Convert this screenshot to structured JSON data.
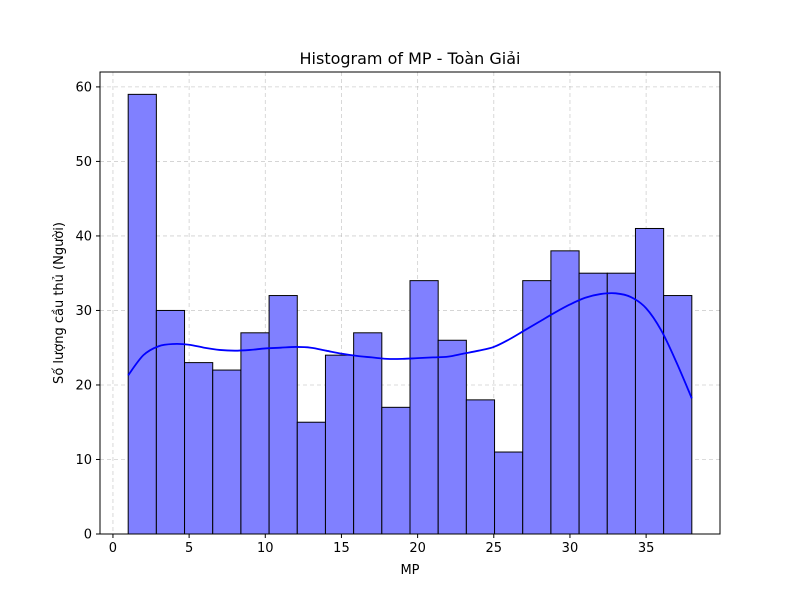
{
  "chart_data": {
    "type": "bar",
    "title": "Histogram of MP - Toàn Giải",
    "xlabel": "MP",
    "ylabel": "Số lượng cầu thủ (Người)",
    "xlim": [
      -0.85,
      39.85
    ],
    "ylim": [
      0,
      62
    ],
    "xticks": [
      0,
      5,
      10,
      15,
      20,
      25,
      30,
      35
    ],
    "yticks": [
      0,
      10,
      20,
      30,
      40,
      50,
      60
    ],
    "grid": true,
    "bar_color": "#8080ff",
    "bar_edge_color": "#000000",
    "kde_color": "#0000ff",
    "bins": [
      {
        "start": 1.0,
        "end": 2.85,
        "count": 59
      },
      {
        "start": 2.85,
        "end": 4.7,
        "count": 30
      },
      {
        "start": 4.7,
        "end": 6.55,
        "count": 23
      },
      {
        "start": 6.55,
        "end": 8.4,
        "count": 22
      },
      {
        "start": 8.4,
        "end": 10.25,
        "count": 27
      },
      {
        "start": 10.25,
        "end": 12.1,
        "count": 32
      },
      {
        "start": 12.1,
        "end": 13.95,
        "count": 15
      },
      {
        "start": 13.95,
        "end": 15.8,
        "count": 24
      },
      {
        "start": 15.8,
        "end": 17.65,
        "count": 27
      },
      {
        "start": 17.65,
        "end": 19.5,
        "count": 17
      },
      {
        "start": 19.5,
        "end": 21.35,
        "count": 34
      },
      {
        "start": 21.35,
        "end": 23.2,
        "count": 26
      },
      {
        "start": 23.2,
        "end": 25.05,
        "count": 18
      },
      {
        "start": 25.05,
        "end": 26.9,
        "count": 11
      },
      {
        "start": 26.9,
        "end": 28.75,
        "count": 34
      },
      {
        "start": 28.75,
        "end": 30.6,
        "count": 38
      },
      {
        "start": 30.6,
        "end": 32.45,
        "count": 35
      },
      {
        "start": 32.45,
        "end": 34.3,
        "count": 35
      },
      {
        "start": 34.3,
        "end": 36.15,
        "count": 41
      },
      {
        "start": 36.15,
        "end": 38.0,
        "count": 32
      }
    ],
    "kde": {
      "x": [
        1,
        2,
        3,
        4,
        5,
        6,
        7,
        8,
        9,
        10,
        11,
        12,
        13,
        14,
        15,
        16,
        17,
        18,
        19,
        20,
        21,
        22,
        23,
        24,
        25,
        26,
        27,
        28,
        29,
        30,
        31,
        32,
        33,
        34,
        35,
        36,
        37,
        38
      ],
      "y": [
        21.3,
        24.0,
        25.2,
        25.5,
        25.4,
        25.0,
        24.7,
        24.6,
        24.7,
        24.9,
        25.0,
        25.1,
        25.0,
        24.6,
        24.2,
        23.9,
        23.7,
        23.5,
        23.5,
        23.6,
        23.7,
        23.8,
        24.2,
        24.6,
        25.1,
        26.1,
        27.3,
        28.5,
        29.7,
        30.8,
        31.7,
        32.2,
        32.3,
        31.8,
        30.3,
        27.3,
        23.0,
        18.2
      ]
    }
  }
}
